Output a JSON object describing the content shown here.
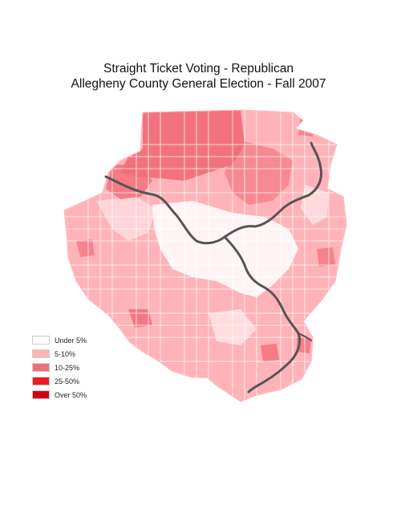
{
  "title": {
    "line1": "Straight Ticket Voting - Republican",
    "line2": "Allegheny County General Election - Fall 2007"
  },
  "legend": [
    {
      "label": "Under 5%",
      "color": "#ffffff"
    },
    {
      "label": "5-10%",
      "color": "#ffb3b8"
    },
    {
      "label": "10-25%",
      "color": "#f26d78"
    },
    {
      "label": "25-50%",
      "color": "#ee1c25"
    },
    {
      "label": "Over 50%",
      "color": "#d20012"
    }
  ],
  "colors": {
    "river": "#555555",
    "boundary": "#ffffff",
    "county_fill": "#ffb3b8"
  }
}
